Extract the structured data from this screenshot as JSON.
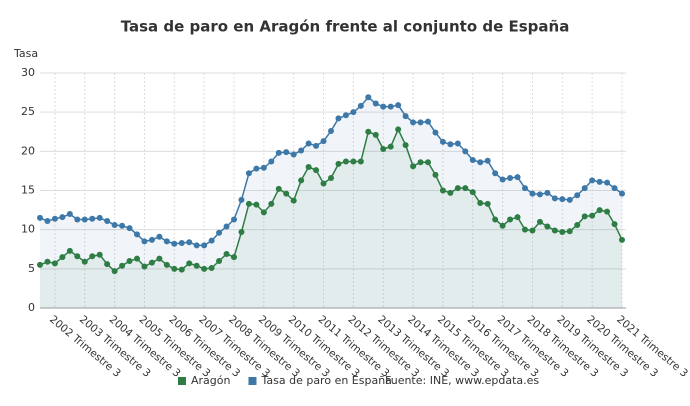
{
  "chart_data": {
    "type": "line",
    "title": "Tasa de paro en Aragón frente al conjunto de España",
    "y_label": "Tasa",
    "categories": [
      null,
      null,
      "2002 Trimestre 3",
      null,
      null,
      null,
      "2003 Trimestre 3",
      null,
      null,
      null,
      "2004 Trimestre 3",
      null,
      null,
      null,
      "2005 Trimestre 3",
      null,
      null,
      null,
      "2006 Trimestre 3",
      null,
      null,
      null,
      "2007 Trimestre 3",
      null,
      null,
      null,
      "2008 Trimestre 3",
      null,
      null,
      null,
      "2009 Trimestre 3",
      null,
      null,
      null,
      "2010 Trimestre 3",
      null,
      null,
      null,
      "2011 Trimestre 3",
      null,
      null,
      null,
      "2012 Trimestre 3",
      null,
      null,
      null,
      "2013 Trimestre 3",
      null,
      null,
      null,
      "2014 Trimestre 3",
      null,
      null,
      null,
      "2015 Trimestre 3",
      null,
      null,
      null,
      "2016 Trimestre 3",
      null,
      null,
      null,
      "2017 Trimestre 3",
      null,
      null,
      null,
      "2018 Trimestre 3",
      null,
      null,
      null,
      "2019 Trimestre 3",
      null,
      null,
      null,
      "2020 Trimestre 3",
      null,
      null,
      null,
      "2021 Trimestre 3"
    ],
    "series": [
      {
        "name": "Aragón",
        "color": "#2e7d45",
        "values": [
          5.5,
          5.9,
          5.7,
          6.5,
          7.3,
          6.6,
          5.9,
          6.6,
          6.8,
          5.6,
          4.7,
          5.4,
          6.0,
          6.3,
          5.3,
          5.8,
          6.3,
          5.5,
          5.0,
          4.9,
          5.7,
          5.4,
          5.0,
          5.1,
          6.0,
          6.9,
          6.5,
          9.7,
          13.3,
          13.2,
          12.2,
          13.3,
          15.2,
          14.6,
          13.7,
          16.3,
          18.0,
          17.6,
          15.9,
          16.6,
          18.4,
          18.7,
          18.7,
          18.7,
          22.5,
          22.1,
          20.3,
          20.6,
          22.8,
          20.8,
          18.1,
          18.6,
          18.6,
          17.0,
          15.0,
          14.7,
          15.3,
          15.3,
          14.8,
          13.4,
          13.3,
          11.3,
          10.5,
          11.3,
          11.6,
          10.0,
          9.9,
          11.0,
          10.4,
          9.9,
          9.7,
          9.8,
          10.6,
          11.7,
          11.8,
          12.5,
          12.3,
          10.7,
          8.7
        ]
      },
      {
        "name": "Tasa de paro en España",
        "color": "#3d78a8",
        "values": [
          11.5,
          11.1,
          11.4,
          11.6,
          12.0,
          11.3,
          11.3,
          11.4,
          11.5,
          11.1,
          10.6,
          10.5,
          10.2,
          9.4,
          8.5,
          8.7,
          9.1,
          8.5,
          8.2,
          8.3,
          8.4,
          8.0,
          8.0,
          8.6,
          9.6,
          10.4,
          11.3,
          13.8,
          17.2,
          17.8,
          17.9,
          18.7,
          19.8,
          19.9,
          19.6,
          20.1,
          21.0,
          20.7,
          21.3,
          22.6,
          24.2,
          24.6,
          25.0,
          25.8,
          26.9,
          26.1,
          25.7,
          25.7,
          25.9,
          24.5,
          23.7,
          23.7,
          23.8,
          22.4,
          21.2,
          20.9,
          21.0,
          20.0,
          18.9,
          18.6,
          18.8,
          17.2,
          16.4,
          16.6,
          16.7,
          15.3,
          14.6,
          14.5,
          14.7,
          14.0,
          13.9,
          13.8,
          14.4,
          15.3,
          16.3,
          16.1,
          16.0,
          15.3,
          14.6
        ]
      }
    ],
    "ylim": [
      0,
      30
    ],
    "yticks": [
      0,
      5,
      10,
      15,
      20,
      25,
      30
    ],
    "grid": true,
    "source": "Fuente: INE, www.epdata.es"
  }
}
